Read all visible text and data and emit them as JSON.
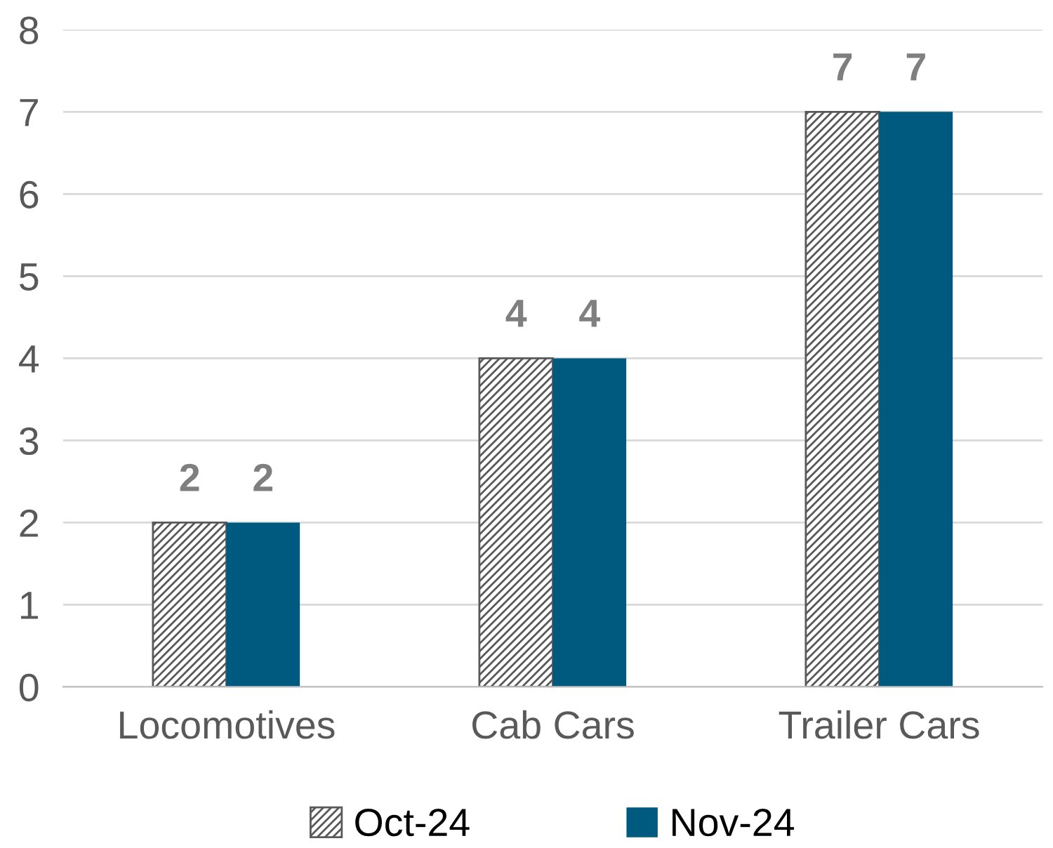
{
  "chart_data": {
    "type": "bar",
    "categories": [
      "Locomotives",
      "Cab Cars",
      "Trailer Cars"
    ],
    "series": [
      {
        "name": "Oct-24",
        "color": "#595959",
        "values": [
          2,
          4,
          7
        ]
      },
      {
        "name": "Nov-24",
        "color": "#005a80",
        "values": [
          2,
          4,
          7
        ]
      }
    ],
    "ylim": [
      0,
      8
    ],
    "yticks": [
      0,
      1,
      2,
      3,
      4,
      5,
      6,
      7,
      8
    ],
    "grid": "y",
    "legend": "bottom",
    "data_labels": true
  }
}
